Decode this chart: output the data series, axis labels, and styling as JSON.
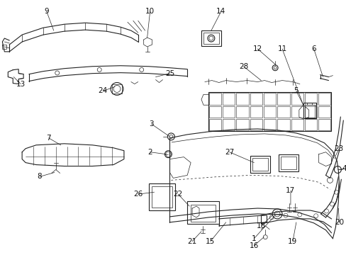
{
  "bg_color": "#ffffff",
  "line_color": "#222222",
  "text_color": "#111111",
  "figsize": [
    4.89,
    3.6
  ],
  "dpi": 100
}
